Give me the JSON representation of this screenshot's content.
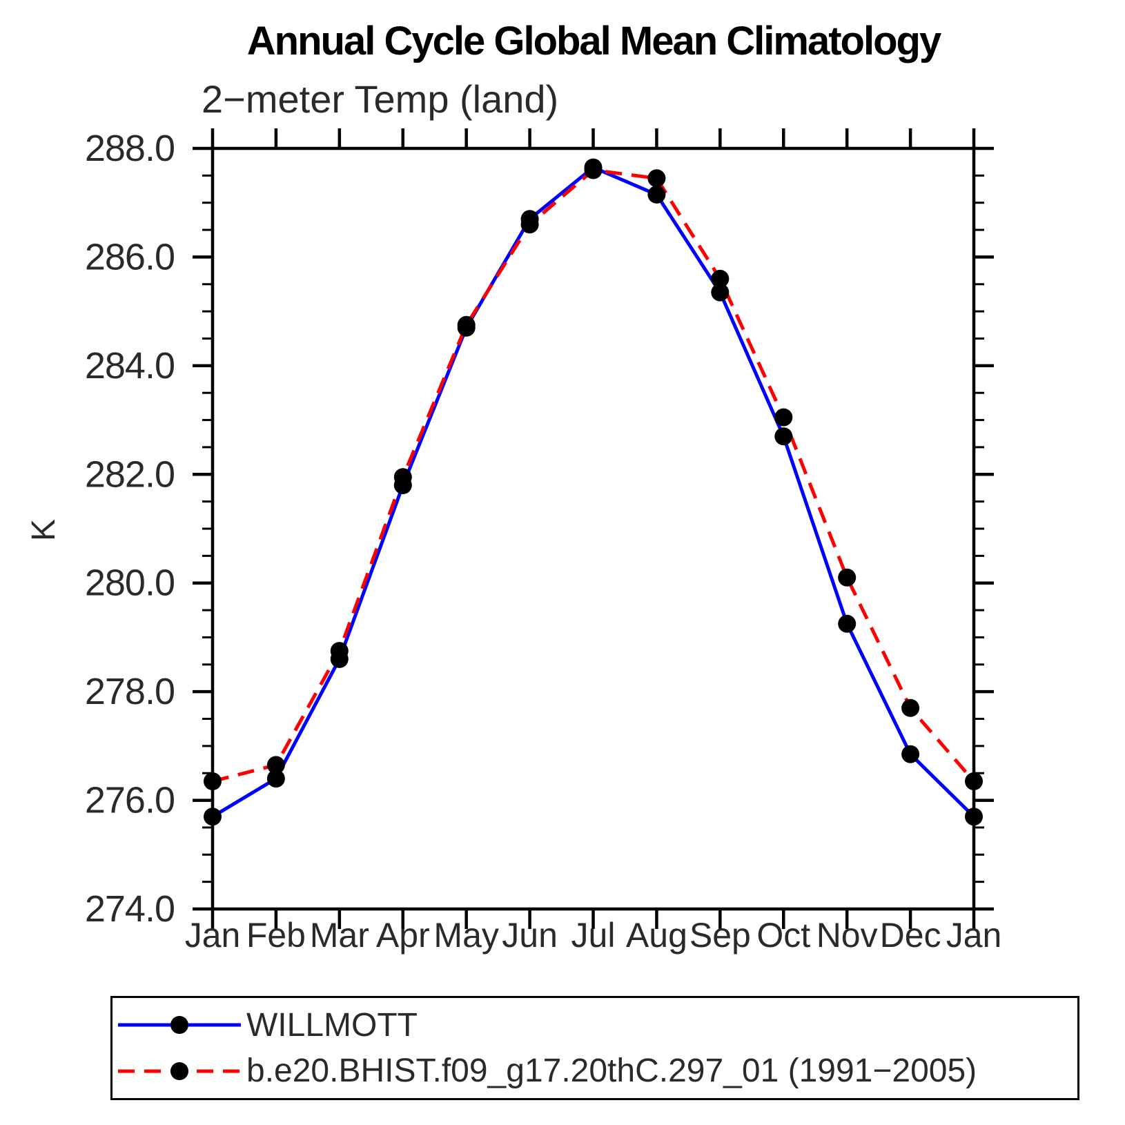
{
  "chart_data": {
    "type": "line",
    "title": "Annual Cycle Global Mean Climatology",
    "subtitle": "2−meter Temp (land)",
    "ylabel": "K",
    "xlabel": "",
    "ylim": [
      274.0,
      288.0
    ],
    "y_major_tick_step": 2.0,
    "y_minor_tick_step": 0.5,
    "y_tick_labels": [
      "288.0",
      "286.0",
      "284.0",
      "282.0",
      "280.0",
      "278.0",
      "276.0",
      "274.0"
    ],
    "categories": [
      "Jan",
      "Feb",
      "Mar",
      "Apr",
      "May",
      "Jun",
      "Jul",
      "Aug",
      "Sep",
      "Oct",
      "Nov",
      "Dec",
      "Jan"
    ],
    "grid": "off",
    "legend_position": "bottom-left-box",
    "frame": "closed-box-outward-ticks",
    "series": [
      {
        "name": "WILLMOTT",
        "color": "#0000ff",
        "line_style": "solid",
        "marker": "filled-circle",
        "marker_color": "#000000",
        "values": [
          275.7,
          276.4,
          278.6,
          281.8,
          284.7,
          286.7,
          287.65,
          287.15,
          285.35,
          282.7,
          279.25,
          276.85,
          275.7
        ]
      },
      {
        "name": "b.e20.BHIST.f09_g17.20thC.297_01 (1991−2005)",
        "color": "#ff0000",
        "line_style": "dashed",
        "marker": "filled-circle",
        "marker_color": "#000000",
        "values": [
          276.35,
          276.65,
          278.75,
          281.95,
          284.75,
          286.6,
          287.6,
          287.45,
          285.6,
          283.05,
          280.1,
          277.7,
          276.35
        ]
      }
    ]
  }
}
